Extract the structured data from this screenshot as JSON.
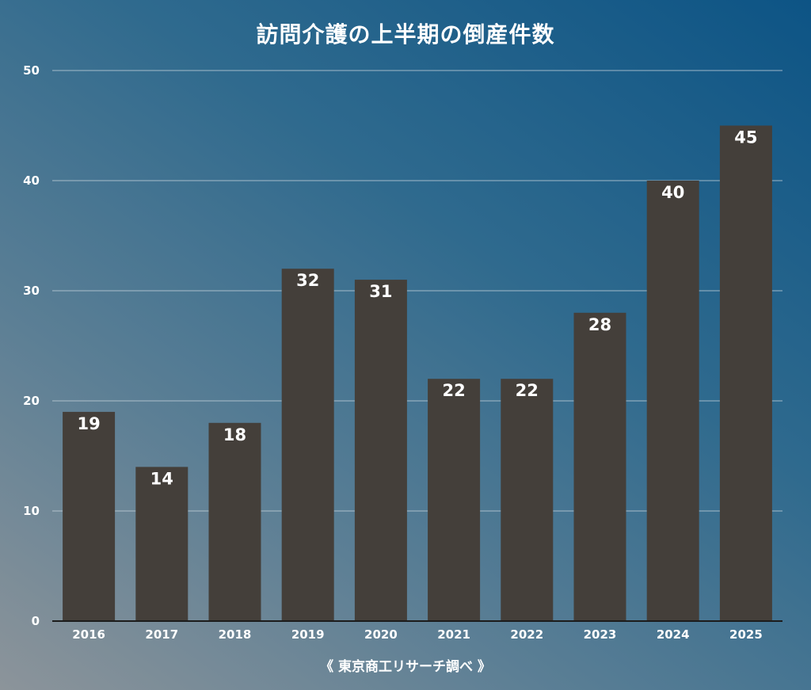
{
  "chart_data": {
    "type": "bar",
    "title": "訪問介護の上半期の倒産件数",
    "categories": [
      "2016",
      "2017",
      "2018",
      "2019",
      "2020",
      "2021",
      "2022",
      "2023",
      "2024",
      "2025"
    ],
    "values": [
      19,
      14,
      18,
      32,
      31,
      22,
      22,
      28,
      40,
      45
    ],
    "yticks": [
      0,
      10,
      20,
      30,
      40,
      50
    ],
    "ylim": [
      0,
      50
    ],
    "grid": true,
    "data_labels": true,
    "colors": {
      "bar": "#443f3a",
      "gridline": "#c9d6de",
      "baseline": "#1c1c1c",
      "text": "#ffffff"
    }
  },
  "source_note": "《 東京商工リサーチ調べ 》"
}
